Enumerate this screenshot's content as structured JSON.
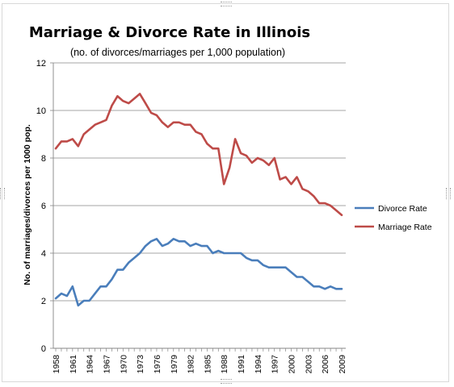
{
  "chart_data": {
    "type": "line",
    "title": "Marriage & Divorce Rate in Illinois",
    "subtitle": "(no. of divorces/marriages per 1,000 population)",
    "xlabel": "",
    "ylabel": "No. of marriages/divorces per 1000 pop.",
    "ylim": [
      0,
      12
    ],
    "yticks": [
      0,
      2,
      4,
      6,
      8,
      10,
      12
    ],
    "xlim": [
      1958,
      2009
    ],
    "xticks": [
      1958,
      1961,
      1964,
      1967,
      1970,
      1973,
      1976,
      1979,
      1982,
      1985,
      1988,
      1991,
      1994,
      1997,
      2000,
      2003,
      2006,
      2009
    ],
    "grid": "horizontal",
    "legend_position": "right",
    "x": [
      1958,
      1959,
      1960,
      1961,
      1962,
      1963,
      1964,
      1965,
      1966,
      1967,
      1968,
      1969,
      1970,
      1971,
      1972,
      1973,
      1974,
      1975,
      1976,
      1977,
      1978,
      1979,
      1980,
      1981,
      1982,
      1983,
      1984,
      1985,
      1986,
      1987,
      1988,
      1989,
      1990,
      1991,
      1992,
      1993,
      1994,
      1995,
      1996,
      1997,
      1998,
      1999,
      2000,
      2001,
      2002,
      2003,
      2004,
      2005,
      2006,
      2007,
      2008,
      2009
    ],
    "series": [
      {
        "name": "Divorce Rate",
        "color": "#4a7ebb",
        "values": [
          2.1,
          2.3,
          2.2,
          2.6,
          1.8,
          2.0,
          2.0,
          2.3,
          2.6,
          2.6,
          2.9,
          3.3,
          3.3,
          3.6,
          3.8,
          4.0,
          4.3,
          4.5,
          4.6,
          4.3,
          4.4,
          4.6,
          4.5,
          4.5,
          4.3,
          4.4,
          4.3,
          4.3,
          4.0,
          4.1,
          4.0,
          4.0,
          4.0,
          4.0,
          3.8,
          3.7,
          3.7,
          3.5,
          3.4,
          3.4,
          3.4,
          3.4,
          3.2,
          3.0,
          3.0,
          2.8,
          2.6,
          2.6,
          2.5,
          2.6,
          2.5,
          2.5
        ]
      },
      {
        "name": "Marriage Rate",
        "color": "#be4b48",
        "values": [
          8.4,
          8.7,
          8.7,
          8.8,
          8.5,
          9.0,
          9.2,
          9.4,
          9.5,
          9.6,
          10.2,
          10.6,
          10.4,
          10.3,
          10.5,
          10.7,
          10.3,
          9.9,
          9.8,
          9.5,
          9.3,
          9.5,
          9.5,
          9.4,
          9.4,
          9.1,
          9.0,
          8.6,
          8.4,
          8.4,
          6.9,
          7.6,
          8.8,
          8.2,
          8.1,
          7.8,
          8.0,
          7.9,
          7.7,
          8.0,
          7.1,
          7.2,
          6.9,
          7.2,
          6.7,
          6.6,
          6.4,
          6.1,
          6.1,
          6.0,
          5.8,
          5.6
        ]
      }
    ]
  }
}
